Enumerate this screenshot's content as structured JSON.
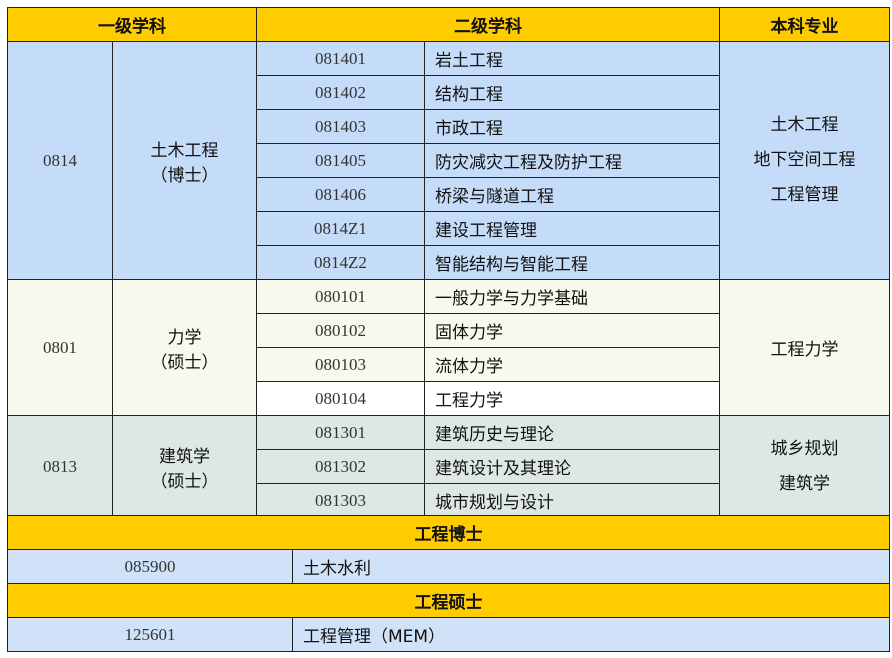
{
  "headers": {
    "level1": "一级学科",
    "level2": "二级学科",
    "undergrad": "本科专业"
  },
  "groups": [
    {
      "code": "0814",
      "name": "土木工程",
      "degree": "（博士）",
      "subs": [
        {
          "code": "081401",
          "name": "岩土工程"
        },
        {
          "code": "081402",
          "name": "结构工程"
        },
        {
          "code": "081403",
          "name": "市政工程"
        },
        {
          "code": "081405",
          "name": "防灾减灾工程及防护工程"
        },
        {
          "code": "081406",
          "name": "桥梁与隧道工程"
        },
        {
          "code": "0814Z1",
          "name": "建设工程管理"
        },
        {
          "code": "0814Z2",
          "name": "智能结构与智能工程"
        }
      ],
      "undergrad": [
        "土木工程",
        "地下空间工程",
        "工程管理"
      ]
    },
    {
      "code": "0801",
      "name": "力学",
      "degree": "（硕士）",
      "subs": [
        {
          "code": "080101",
          "name": "一般力学与力学基础"
        },
        {
          "code": "080102",
          "name": "固体力学"
        },
        {
          "code": "080103",
          "name": "流体力学"
        },
        {
          "code": "080104",
          "name": "工程力学"
        }
      ],
      "undergrad": [
        "工程力学"
      ]
    },
    {
      "code": "0813",
      "name": "建筑学",
      "degree": "（硕士）",
      "subs": [
        {
          "code": "081301",
          "name": "建筑历史与理论"
        },
        {
          "code": "081302",
          "name": "建筑设计及其理论"
        },
        {
          "code": "081303",
          "name": "城市规划与设计"
        }
      ],
      "undergrad": [
        "城乡规划",
        "建筑学"
      ]
    }
  ],
  "professional": [
    {
      "title": "工程博士",
      "code": "085900",
      "name": "土木水利"
    },
    {
      "title": "工程硕士",
      "code": "125601",
      "name": "工程管理（MEM）"
    }
  ],
  "colors": {
    "header": "#ffcc00",
    "civil": "#c5dcf8",
    "mechanics": "#f8f8ec",
    "architecture": "#dde8e6",
    "professional": "#cfe2f8"
  }
}
